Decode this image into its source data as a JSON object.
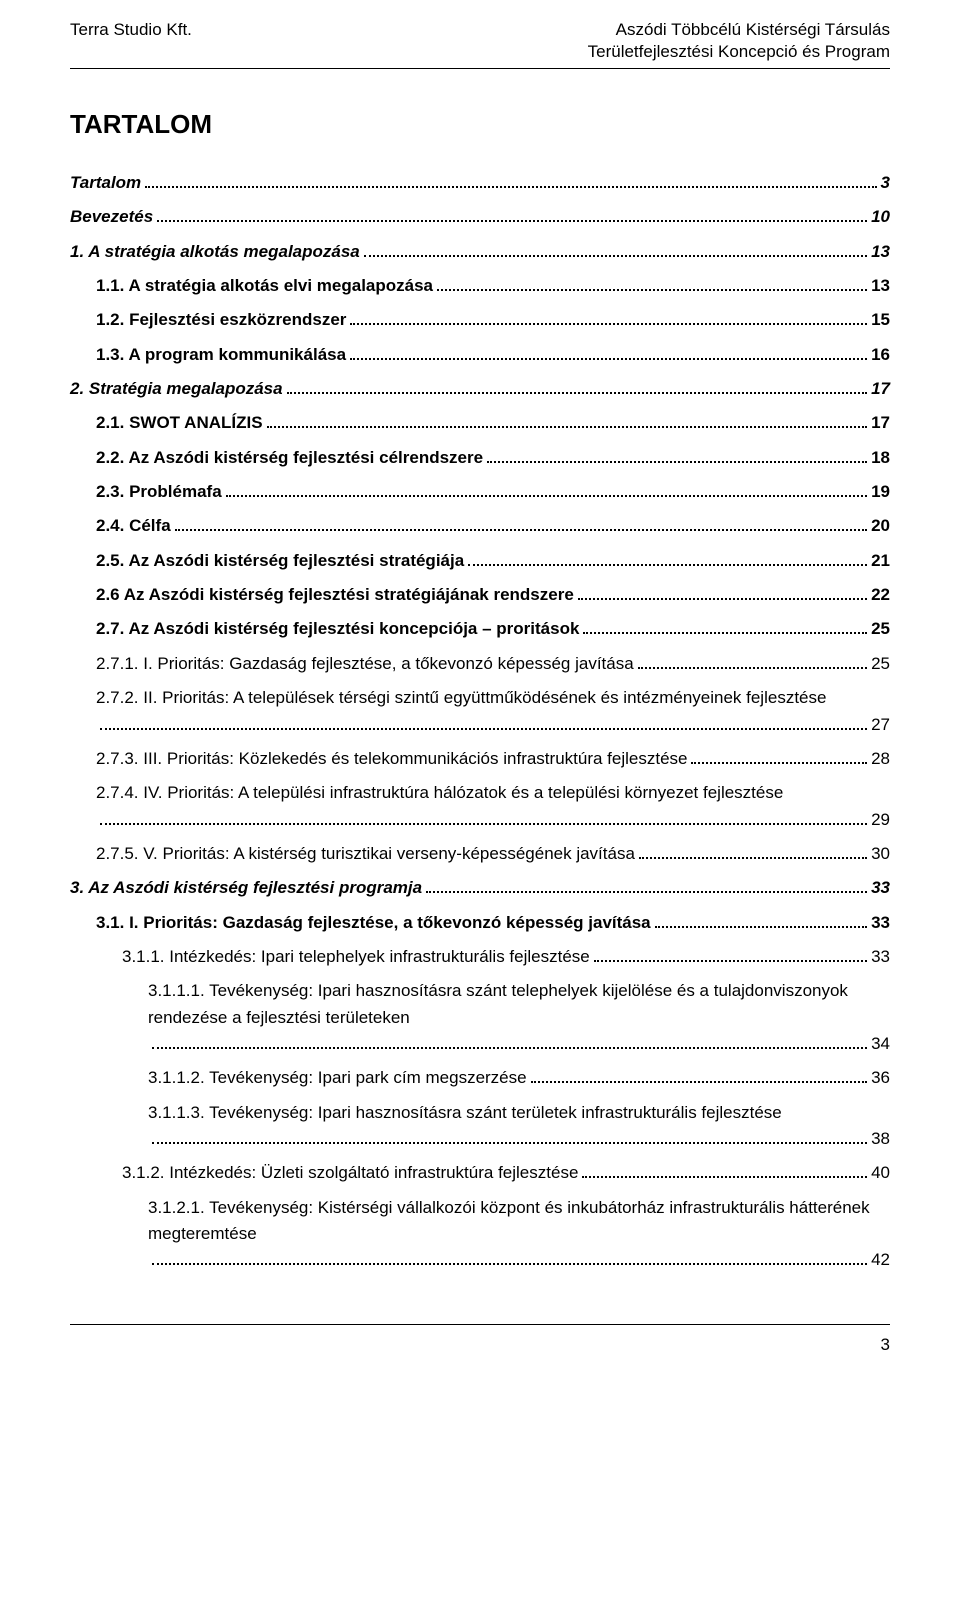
{
  "header": {
    "left": "Terra Studio Kft.",
    "right": "Aszódi Többcélú Kistérségi Társulás",
    "sub": "Területfejlesztési Koncepció és Program"
  },
  "title": "TARTALOM",
  "toc": [
    {
      "label": "Tartalom",
      "page": "3",
      "cls": "lvl0"
    },
    {
      "label": "Bevezetés",
      "page": "10",
      "cls": "lvl0"
    },
    {
      "label": "1. A stratégia alkotás megalapozása",
      "page": "13",
      "cls": "lvl0b"
    },
    {
      "label": "1.1.  A stratégia alkotás elvi megalapozása",
      "page": "13",
      "cls": "lvl1"
    },
    {
      "label": "1.2.  Fejlesztési eszközrendszer",
      "page": "15",
      "cls": "lvl1"
    },
    {
      "label": "1.3.  A program kommunikálása",
      "page": "16",
      "cls": "lvl1"
    },
    {
      "label": "2.  Stratégia megalapozása",
      "page": "17",
      "cls": "lvl0b"
    },
    {
      "label": "2.1.  SWOT ANALÍZIS",
      "page": "17",
      "cls": "lvl1"
    },
    {
      "label": "2.2.  Az Aszódi kistérség fejlesztési célrendszere",
      "page": "18",
      "cls": "lvl1"
    },
    {
      "label": "2.3.  Problémafa",
      "page": "19",
      "cls": "lvl1"
    },
    {
      "label": "2.4.  Célfa",
      "page": "20",
      "cls": "lvl1"
    },
    {
      "label": "2.5.  Az Aszódi kistérség fejlesztési stratégiája",
      "page": "21",
      "cls": "lvl1"
    },
    {
      "label": "2.6 Az Aszódi kistérség fejlesztési stratégiájának rendszere",
      "page": "22",
      "cls": "lvl1"
    },
    {
      "label": "2.7.  Az Aszódi kistérség fejlesztési koncepciója – proritások",
      "page": "25",
      "cls": "lvl1"
    },
    {
      "label": "2.7.1. I. Prioritás: Gazdaság fejlesztése, a tőkevonzó képesség javítása",
      "page": "25",
      "cls": "lvl2"
    },
    {
      "label": "2.7.2. II. Prioritás: A települések térségi szintű együttműködésének és intézményeinek fejlesztése",
      "page": "27",
      "cls": "lvl2",
      "multiline": true
    },
    {
      "label": "2.7.3. III. Prioritás: Közlekedés és telekommunikációs infrastruktúra fejlesztése",
      "page": "28",
      "cls": "lvl2"
    },
    {
      "label": "2.7.4. IV. Prioritás: A települési infrastruktúra hálózatok és a települési környezet fejlesztése",
      "page": "29",
      "cls": "lvl2",
      "multiline": true
    },
    {
      "label": "2.7.5. V. Prioritás: A kistérség turisztikai verseny-képességének javítása",
      "page": "30",
      "cls": "lvl2"
    },
    {
      "label": "3.   Az Aszódi kistérség fejlesztési programja",
      "page": "33",
      "cls": "lvl0b"
    },
    {
      "label": "3.1.   I. Prioritás: Gazdaság fejlesztése, a tőkevonzó képesség javítása",
      "page": "33",
      "cls": "lvl1"
    },
    {
      "label": "3.1.1. Intézkedés: Ipari telephelyek infrastrukturális fejlesztése",
      "page": "33",
      "cls": "lvl3"
    },
    {
      "label": "3.1.1.1. Tevékenység: Ipari hasznosításra szánt telephelyek kijelölése és a tulajdonviszonyok rendezése a fejlesztési területeken",
      "page": "34",
      "cls": "lvl4",
      "multiline": true
    },
    {
      "label": "3.1.1.2. Tevékenység: Ipari park cím megszerzése",
      "page": "36",
      "cls": "lvl4"
    },
    {
      "label": "3.1.1.3. Tevékenység: Ipari hasznosításra szánt területek infrastrukturális fejlesztése",
      "page": "38",
      "cls": "lvl4",
      "multiline": true,
      "leadingDots": true
    },
    {
      "label": "3.1.2. Intézkedés: Üzleti szolgáltató infrastruktúra fejlesztése",
      "page": "40",
      "cls": "lvl3"
    },
    {
      "label": "3.1.2.1. Tevékenység: Kistérségi vállalkozói központ és inkubátorház infrastrukturális hátterének megteremtése",
      "page": "42",
      "cls": "lvl4",
      "multiline": true
    }
  ],
  "pageNumber": "3"
}
